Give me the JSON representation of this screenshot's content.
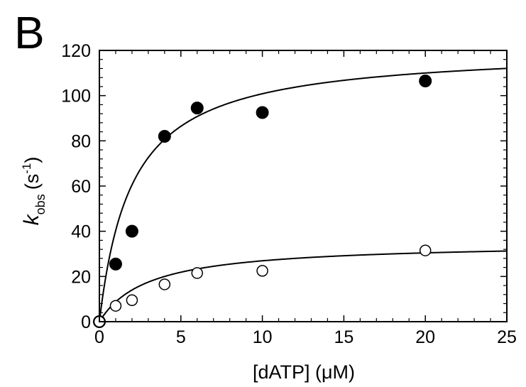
{
  "panel_label": "B",
  "chart_data": {
    "type": "scatter",
    "title": "",
    "xlabel": "[dATP] (μM)",
    "ylabel_main": "k",
    "ylabel_sub": "obs",
    "ylabel_unit_open": "(s",
    "ylabel_unit_sup": "-1",
    "ylabel_unit_close": ")",
    "xlim": [
      0,
      25
    ],
    "ylim": [
      0,
      120
    ],
    "xticks": [
      0,
      5,
      10,
      15,
      20,
      25
    ],
    "yticks": [
      0,
      20,
      40,
      60,
      80,
      100,
      120
    ],
    "grid": false,
    "series": [
      {
        "marker": "filled-circle",
        "x": [
          0,
          1,
          2,
          4,
          6,
          10,
          20
        ],
        "y": [
          0,
          25.5,
          40,
          82,
          94.5,
          92.5,
          106.5
        ],
        "fit": {
          "model": "hyperbola",
          "kmax": 121,
          "kd": 2.0
        }
      },
      {
        "marker": "open-circle",
        "x": [
          0,
          1,
          2,
          4,
          6,
          10,
          20
        ],
        "y": [
          0,
          7,
          9.5,
          16.5,
          21.5,
          22.5,
          31.5
        ],
        "fit": {
          "model": "hyperbola",
          "kmax": 35,
          "kd": 3.0
        }
      }
    ]
  }
}
